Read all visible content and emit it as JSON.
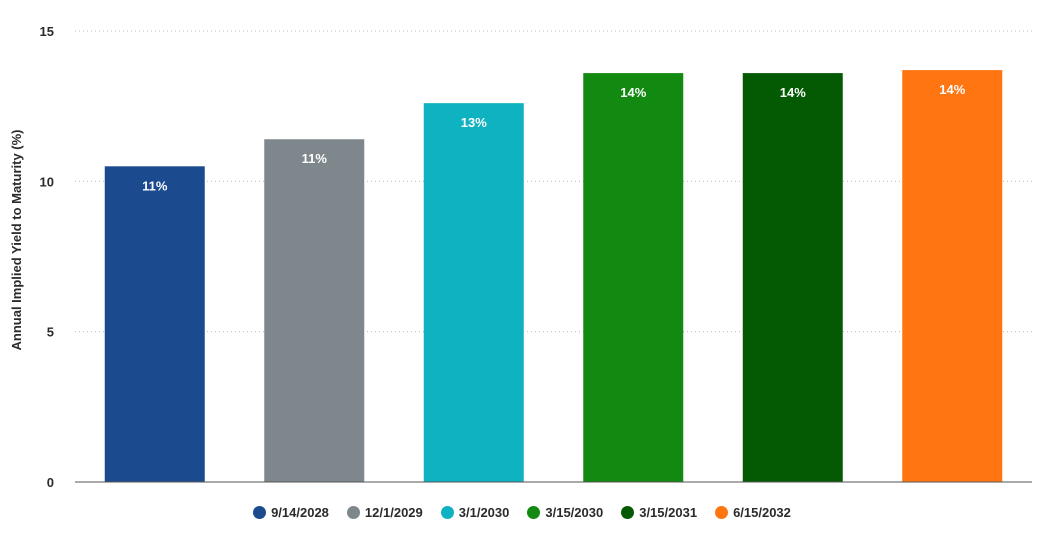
{
  "chart_data": {
    "type": "bar",
    "title": "",
    "xlabel": "",
    "ylabel": "Annual Implied Yield to Maturity (%)",
    "ylim": [
      0,
      15
    ],
    "yticks": [
      0,
      5,
      10,
      15
    ],
    "grid": true,
    "legend_position": "bottom-center",
    "categories": [
      "9/14/2028",
      "12/1/2029",
      "3/1/2030",
      "3/15/2030",
      "3/15/2031",
      "6/15/2032"
    ],
    "values": [
      10.5,
      11.4,
      12.6,
      13.6,
      13.6,
      13.7
    ],
    "data_labels": [
      "11%",
      "11%",
      "13%",
      "14%",
      "14%",
      "14%"
    ],
    "colors": [
      "#1b4a8e",
      "#7e878b",
      "#0eb2c1",
      "#128a12",
      "#035a03",
      "#ff7512"
    ]
  }
}
